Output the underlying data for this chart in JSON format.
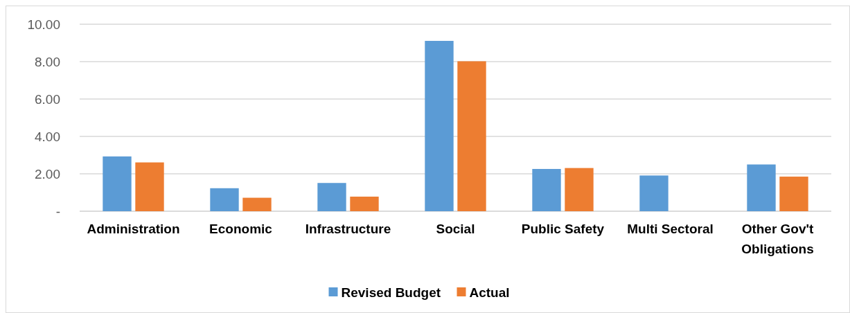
{
  "chart_data": {
    "type": "bar",
    "categories": [
      "Administration",
      "Economic",
      "Infrastructure",
      "Social",
      "Public Safety",
      "Multi Sectoral",
      "Other Gov't Obligations"
    ],
    "series": [
      {
        "name": "Revised Budget",
        "color": "#5b9bd5",
        "values": [
          2.93,
          1.23,
          1.51,
          9.11,
          2.26,
          1.91,
          2.5
        ]
      },
      {
        "name": "Actual",
        "color": "#ed7d31",
        "values": [
          2.61,
          0.72,
          0.78,
          8.02,
          2.31,
          null,
          1.85
        ]
      }
    ],
    "ylim": [
      0,
      10
    ],
    "yticks": [
      {
        "value": 0,
        "label": "-"
      },
      {
        "value": 2,
        "label": "2.00"
      },
      {
        "value": 4,
        "label": "4.00"
      },
      {
        "value": 6,
        "label": "6.00"
      },
      {
        "value": 8,
        "label": "8.00"
      },
      {
        "value": 10,
        "label": "10.00"
      }
    ],
    "grid": "y",
    "legend": "bottom"
  }
}
